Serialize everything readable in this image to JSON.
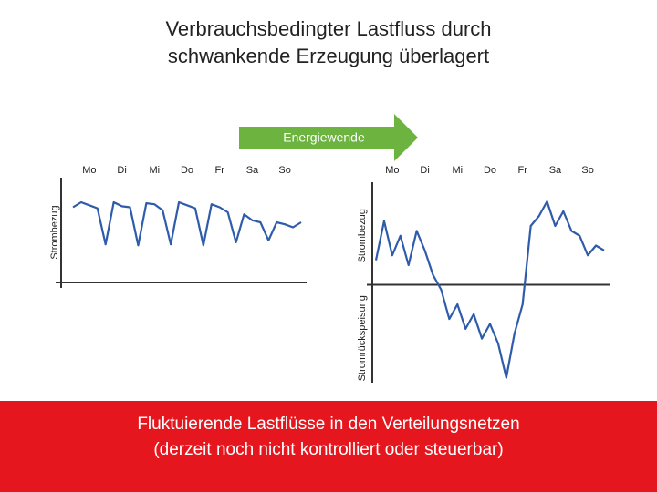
{
  "title": [
    "Verbrauchsbedingter Lastfluss durch",
    "schwankende Erzeugung überlagert"
  ],
  "arrow_label": "Energiewende",
  "footer": [
    "Fluktuierende Lastflüsse in den Verteilungsnetzen",
    "(derzeit noch nicht kontrolliert oder steuerbar)"
  ],
  "chart_data": [
    {
      "type": "line",
      "color": "#2f5caa",
      "y_label": "Strombezug",
      "xlim": [
        0,
        7
      ],
      "ylim": [
        0,
        1
      ],
      "xticks": [
        {
          "value": 0.5,
          "label": "Mo"
        },
        {
          "value": 1.5,
          "label": "Di"
        },
        {
          "value": 2.5,
          "label": "Mi"
        },
        {
          "value": 3.5,
          "label": "Do"
        },
        {
          "value": 4.5,
          "label": "Fr"
        },
        {
          "value": 5.5,
          "label": "Sa"
        },
        {
          "value": 6.5,
          "label": "So"
        }
      ],
      "x": [
        0,
        0.25,
        0.5,
        0.75,
        1,
        1.25,
        1.5,
        1.75,
        2,
        2.25,
        2.5,
        2.75,
        3,
        3.25,
        3.5,
        3.75,
        4,
        4.25,
        4.5,
        4.75,
        5,
        5.25,
        5.5,
        5.75,
        6,
        6.25,
        6.5,
        6.75,
        7
      ],
      "values": [
        0.75,
        0.8,
        0.77,
        0.74,
        0.38,
        0.8,
        0.76,
        0.75,
        0.37,
        0.79,
        0.78,
        0.72,
        0.38,
        0.8,
        0.77,
        0.74,
        0.37,
        0.78,
        0.75,
        0.7,
        0.4,
        0.68,
        0.62,
        0.6,
        0.42,
        0.6,
        0.58,
        0.55,
        0.6
      ]
    },
    {
      "type": "line",
      "color": "#2f5caa",
      "y_label": "Strombezug",
      "y_label_negative": "Stromrückspeisung",
      "xlim": [
        0,
        7
      ],
      "ylim": [
        -1,
        1
      ],
      "xticks": [
        {
          "value": 0.5,
          "label": "Mo"
        },
        {
          "value": 1.5,
          "label": "Di"
        },
        {
          "value": 2.5,
          "label": "Mi"
        },
        {
          "value": 3.5,
          "label": "Do"
        },
        {
          "value": 4.5,
          "label": "Fr"
        },
        {
          "value": 5.5,
          "label": "Sa"
        },
        {
          "value": 6.5,
          "label": "So"
        }
      ],
      "x": [
        0,
        0.25,
        0.5,
        0.75,
        1,
        1.25,
        1.5,
        1.75,
        2,
        2.25,
        2.5,
        2.75,
        3,
        3.25,
        3.5,
        3.75,
        4,
        4.25,
        4.5,
        4.75,
        5,
        5.25,
        5.5,
        5.75,
        6,
        6.25,
        6.5,
        6.75,
        7
      ],
      "values": [
        0.25,
        0.65,
        0.3,
        0.5,
        0.2,
        0.55,
        0.35,
        0.1,
        -0.05,
        -0.35,
        -0.2,
        -0.45,
        -0.3,
        -0.55,
        -0.4,
        -0.6,
        -0.95,
        -0.5,
        -0.2,
        0.6,
        0.7,
        0.85,
        0.6,
        0.75,
        0.55,
        0.5,
        0.3,
        0.4,
        0.35
      ]
    }
  ]
}
